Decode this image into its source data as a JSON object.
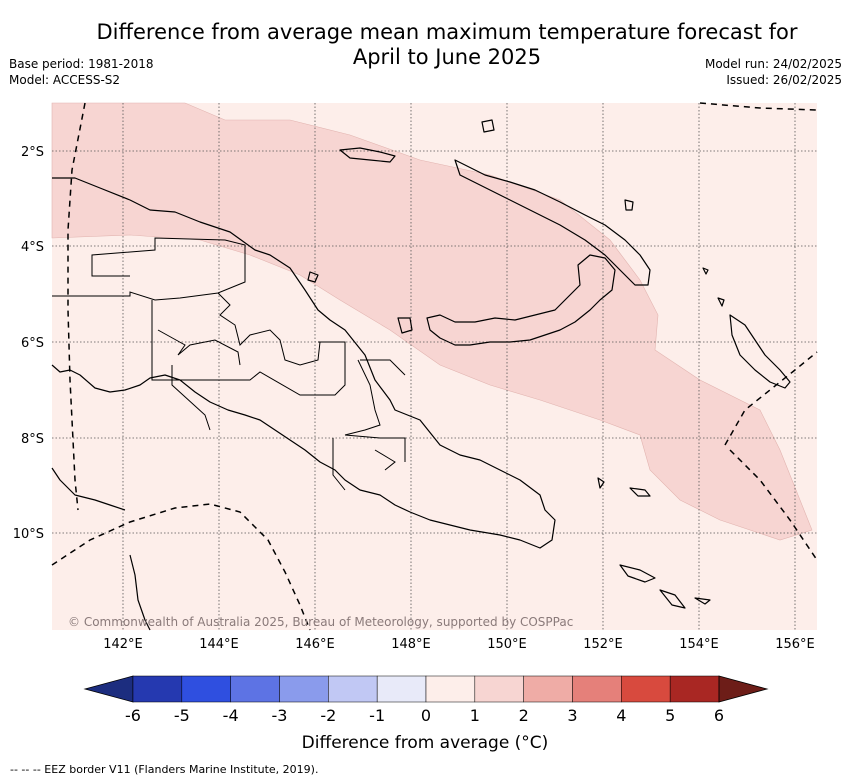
{
  "title_line1": "Difference from average mean maximum temperature forecast for",
  "title_line2": "April to June 2025",
  "base_period": "Base period: 1981-2018",
  "model": "Model: ACCESS-S2",
  "model_run": "Model run: 24/02/2025",
  "issued": "Issued: 26/02/2025",
  "copyright": "© Commonwealth of Australia 2025, Bureau of Meteorology, supported by COSPPac",
  "lat_labels": [
    "2°S",
    "4°S",
    "6°S",
    "8°S",
    "10°S"
  ],
  "lon_labels": [
    "142°E",
    "144°E",
    "146°E",
    "148°E",
    "150°E",
    "152°E",
    "154°E",
    "156°E"
  ],
  "colorbar": {
    "ticks": [
      "-6",
      "-5",
      "-4",
      "-3",
      "-2",
      "-1",
      "0",
      "1",
      "2",
      "3",
      "4",
      "5",
      "6"
    ],
    "colors": [
      "#1c2d7f",
      "#2539b0",
      "#2f4fe0",
      "#5d73e4",
      "#8a9bec",
      "#c1c8f4",
      "#e8eaf9",
      "#fdeeea",
      "#f7d5d2",
      "#efaca6",
      "#e5807a",
      "#d84a3e",
      "#a92723",
      "#6d1d18"
    ],
    "title": "Difference from average (°C)"
  },
  "legend_footer": "--  --  -- EEZ border V11 (Flanders Marine Institute, 2019).",
  "shading": {
    "background_color": "#fdeeea",
    "band_color": "#f7d5d2",
    "background_class": "0 to 1",
    "band_class": "1 to 2"
  }
}
